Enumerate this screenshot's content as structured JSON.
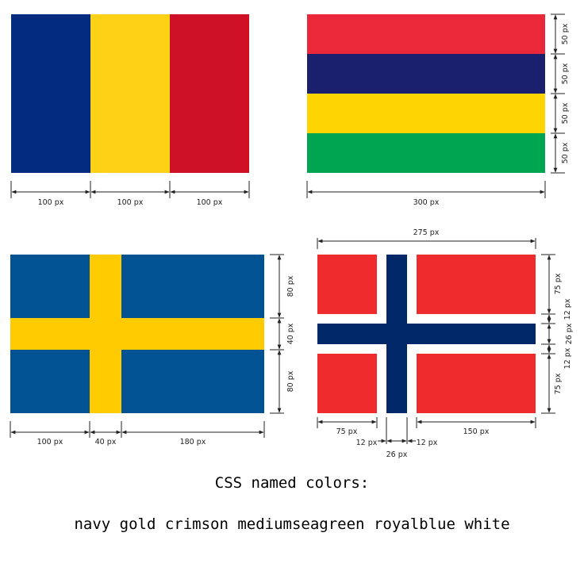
{
  "colors": {
    "romania_blue": "#002b7f",
    "romania_yellow": "#fcd116",
    "romania_red": "#ce1126",
    "mauritius_red": "#ea2839",
    "mauritius_blue": "#1a206d",
    "mauritius_yellow": "#ffd500",
    "mauritius_green": "#00a551",
    "sweden_blue": "#005293",
    "sweden_yellow": "#fecb00",
    "norway_red": "#ef2b2d",
    "norway_blue": "#002868",
    "norway_white": "#ffffff"
  },
  "romania": {
    "dims": [
      "100 px",
      "100 px",
      "100 px"
    ]
  },
  "mauritius": {
    "bands": [
      "50 px",
      "50 px",
      "50 px",
      "50 px"
    ],
    "width": "300 px"
  },
  "sweden": {
    "horizontal": [
      "100 px",
      "40 px",
      "180 px"
    ],
    "vertical": [
      "80 px",
      "40 px",
      "80 px"
    ]
  },
  "norway": {
    "total_width": "275 px",
    "bottom": [
      "75 px",
      "12 px",
      "26 px",
      "12 px",
      "150 px"
    ],
    "right": [
      "75 px",
      "12 px",
      "26 px",
      "12 px",
      "75 px"
    ]
  },
  "caption": {
    "title": "CSS named colors:",
    "colors_line": "navy gold crimson mediumseagreen royalblue white"
  }
}
